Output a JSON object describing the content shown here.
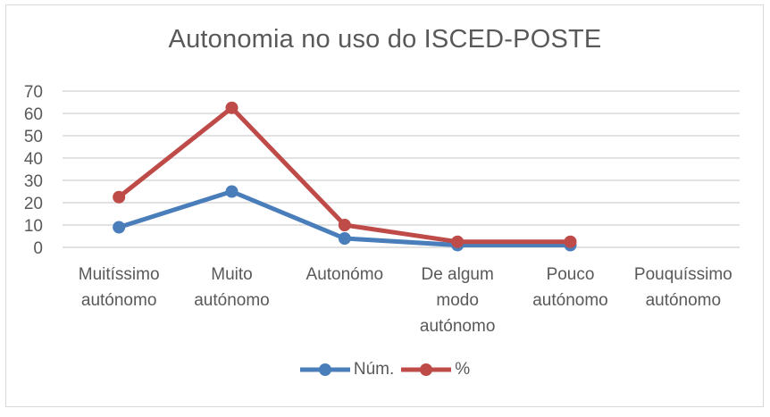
{
  "chart_data": {
    "type": "line",
    "title": "Autonomia no uso do ISCED-POSTE",
    "xlabel": "",
    "ylabel": "",
    "ylim": [
      0,
      70
    ],
    "yticks": [
      0,
      10,
      20,
      30,
      40,
      50,
      60,
      70
    ],
    "grid": true,
    "legend_position": "bottom",
    "categories": [
      "Muitíssimo autónomo",
      "Muito autónomo",
      "Autonómo",
      "De algum modo autónomo",
      "Pouco autónomo",
      "Pouquíssimo autónomo"
    ],
    "category_lines": [
      [
        "Muitíssimo",
        "autónomo"
      ],
      [
        "Muito",
        "autónomo"
      ],
      [
        "Autonómo"
      ],
      [
        "De algum",
        "modo",
        "autónomo"
      ],
      [
        "Pouco",
        "autónomo"
      ],
      [
        "Pouquíssimo",
        "autónomo"
      ]
    ],
    "series": [
      {
        "name": "Núm.",
        "color": "#4a7ebb",
        "values": [
          9,
          25,
          4,
          1,
          1,
          null
        ]
      },
      {
        "name": "%",
        "color": "#be4b48",
        "values": [
          22.5,
          62.5,
          10,
          2.5,
          2.5,
          null
        ]
      }
    ]
  },
  "legend": {
    "items": [
      {
        "label": "Núm.",
        "color": "#4a7ebb"
      },
      {
        "label": "%",
        "color": "#be4b48"
      }
    ]
  }
}
